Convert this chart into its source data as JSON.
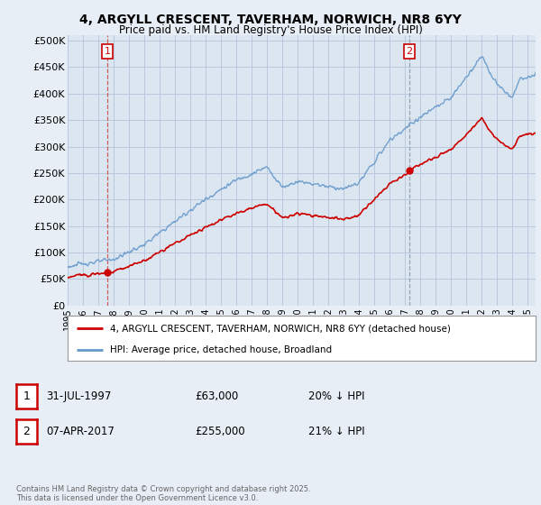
{
  "title_line1": "4, ARGYLL CRESCENT, TAVERHAM, NORWICH, NR8 6YY",
  "title_line2": "Price paid vs. HM Land Registry's House Price Index (HPI)",
  "background_color": "#e8eef5",
  "plot_bg_color": "#dce6f0",
  "grid_color": "#b8c8dc",
  "red_line_color": "#cc0000",
  "blue_line_color": "#6699cc",
  "sale1_date": "31-JUL-1997",
  "sale1_price": 63000,
  "sale1_label": "20% ↓ HPI",
  "sale2_date": "07-APR-2017",
  "sale2_price": 255000,
  "sale2_label": "21% ↓ HPI",
  "legend_label_red": "4, ARGYLL CRESCENT, TAVERHAM, NORWICH, NR8 6YY (detached house)",
  "legend_label_blue": "HPI: Average price, detached house, Broadland",
  "footer": "Contains HM Land Registry data © Crown copyright and database right 2025.\nThis data is licensed under the Open Government Licence v3.0.",
  "ylim": [
    0,
    500000
  ],
  "yticks": [
    0,
    50000,
    100000,
    150000,
    200000,
    250000,
    300000,
    350000,
    400000,
    450000,
    500000
  ],
  "sale1_x": 1997.58,
  "sale2_x": 2017.27,
  "vline1_color": "#cc4444",
  "vline2_color": "#8899aa"
}
